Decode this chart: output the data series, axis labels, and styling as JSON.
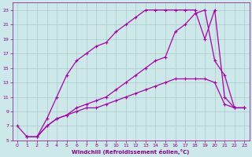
{
  "background_color": "#cce8e8",
  "grid_color": "#aacccc",
  "line_color": "#aa00aa",
  "xlim": [
    -0.5,
    23.5
  ],
  "ylim": [
    5,
    24
  ],
  "xticks": [
    0,
    1,
    2,
    3,
    4,
    5,
    6,
    7,
    8,
    9,
    10,
    11,
    12,
    13,
    14,
    15,
    16,
    17,
    18,
    19,
    20,
    21,
    22,
    23
  ],
  "yticks": [
    5,
    7,
    9,
    11,
    13,
    15,
    17,
    19,
    21,
    23
  ],
  "xlabel": "Windchill (Refroidissement éolien,°C)",
  "xlabel_color": "#880088",
  "tick_color": "#880088",
  "curve1_x": [
    0,
    1,
    2,
    3,
    4,
    5,
    6,
    7,
    8,
    9,
    10,
    11,
    12,
    13,
    14,
    15,
    16,
    17,
    18,
    19,
    20,
    21,
    22,
    23
  ],
  "curve1_y": [
    7,
    5.5,
    5.5,
    7,
    8,
    8.5,
    9,
    9.5,
    9.5,
    10,
    10.5,
    11,
    11.5,
    12,
    12.5,
    13,
    13.5,
    13.5,
    13.5,
    13.5,
    13,
    10,
    9.5,
    9.5
  ],
  "curve2_x": [
    1,
    2,
    3,
    4,
    5,
    6,
    7,
    8,
    9,
    10,
    11,
    12,
    13,
    14,
    15,
    16,
    17,
    18,
    19,
    20,
    21,
    22,
    23
  ],
  "curve2_y": [
    5.5,
    5.5,
    7,
    8,
    8.5,
    9.5,
    10,
    10.5,
    11,
    12,
    13,
    14,
    15,
    16,
    16.5,
    20,
    21,
    22.5,
    23,
    16,
    14,
    9.5,
    9.5
  ],
  "curve3_x": [
    1,
    2,
    3,
    4,
    5,
    6,
    7,
    8,
    9,
    10,
    11,
    12,
    13,
    14,
    15,
    16,
    17,
    18,
    19,
    20,
    21,
    22,
    23
  ],
  "curve3_y": [
    5.5,
    5.5,
    8,
    11,
    14,
    16,
    17,
    18,
    18.5,
    20,
    21,
    22,
    23,
    23,
    23,
    23,
    23,
    23,
    19,
    23,
    11,
    9.5,
    9.5
  ],
  "marker": "P",
  "markersize": 2.5,
  "linewidth": 0.9
}
